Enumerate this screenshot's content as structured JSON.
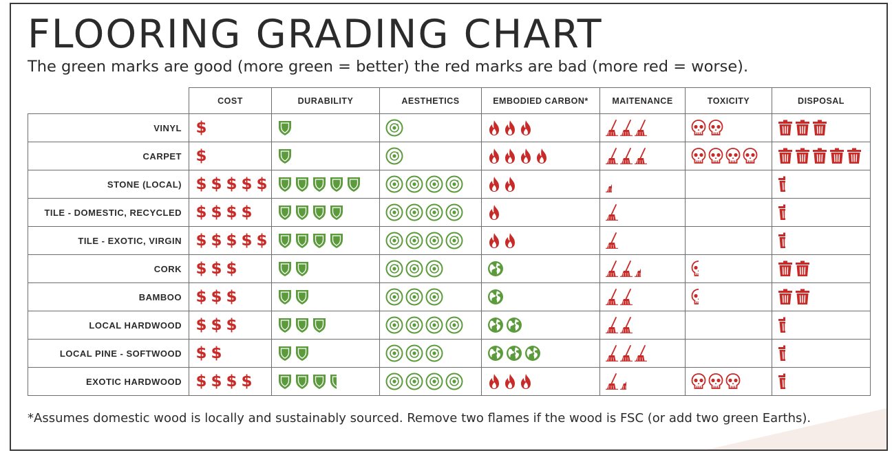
{
  "title": "FLOORING GRADING CHART",
  "subtitle": "The green marks are good (more green = better) the red marks are bad (more red = worse).",
  "columns": [
    "COST",
    "DURABILITY",
    "AESTHETICS",
    "EMBODIED CARBON*",
    "MAITENANCE",
    "TOXICITY",
    "DISPOSAL"
  ],
  "colors": {
    "good": "#5b9b3c",
    "bad": "#c72a27",
    "border": "#6d6d6d",
    "text": "#2b2b2b"
  },
  "icons": {
    "cost": "dollar-icon",
    "durability": "shield-icon",
    "aesthetics": "eye-icon",
    "carbon_bad": "flame-icon",
    "carbon_good": "earth-icon",
    "maintenance": "broom-icon",
    "toxicity": "skull-icon",
    "disposal": "trash-can-icon"
  },
  "rows": [
    {
      "name": "VINYL",
      "cost": 1,
      "durability": 1,
      "aesthetics": 1,
      "carbon": {
        "type": "flame",
        "count": 3
      },
      "maintenance": 3,
      "toxicity": 2,
      "disposal": 3
    },
    {
      "name": "CARPET",
      "cost": 1,
      "durability": 1,
      "aesthetics": 1,
      "carbon": {
        "type": "flame",
        "count": 4
      },
      "maintenance": 3,
      "toxicity": 4,
      "disposal": 5
    },
    {
      "name": "STONE (LOCAL)",
      "cost": 5,
      "durability": 5,
      "aesthetics": 4,
      "carbon": {
        "type": "flame",
        "count": 2
      },
      "maintenance": 0.5,
      "toxicity": 0,
      "disposal": 0.5
    },
    {
      "name": "TILE - DOMESTIC, RECYCLED",
      "cost": 4,
      "durability": 4,
      "aesthetics": 4,
      "carbon": {
        "type": "flame",
        "count": 1
      },
      "maintenance": 1,
      "toxicity": 0,
      "disposal": 0.5
    },
    {
      "name": "TILE - EXOTIC, VIRGIN",
      "cost": 5,
      "durability": 4,
      "aesthetics": 4,
      "carbon": {
        "type": "flame",
        "count": 2
      },
      "maintenance": 1,
      "toxicity": 0,
      "disposal": 0.5
    },
    {
      "name": "CORK",
      "cost": 3,
      "durability": 2,
      "aesthetics": 3,
      "carbon": {
        "type": "earth",
        "count": 1
      },
      "maintenance": 2.5,
      "toxicity": 0.5,
      "disposal": 2
    },
    {
      "name": "BAMBOO",
      "cost": 3,
      "durability": 2,
      "aesthetics": 3,
      "carbon": {
        "type": "earth",
        "count": 1
      },
      "maintenance": 2,
      "toxicity": 0.5,
      "disposal": 2
    },
    {
      "name": "LOCAL HARDWOOD",
      "cost": 3,
      "durability": 3,
      "aesthetics": 4,
      "carbon": {
        "type": "earth",
        "count": 2
      },
      "maintenance": 2,
      "toxicity": 0,
      "disposal": 0.5
    },
    {
      "name": "LOCAL PINE - SOFTWOOD",
      "cost": 2,
      "durability": 2,
      "aesthetics": 3,
      "carbon": {
        "type": "earth",
        "count": 3
      },
      "maintenance": 3,
      "toxicity": 0,
      "disposal": 0.5
    },
    {
      "name": "EXOTIC HARDWOOD",
      "cost": 4,
      "durability": 3.5,
      "aesthetics": 4,
      "carbon": {
        "type": "flame",
        "count": 3
      },
      "maintenance": 1.5,
      "toxicity": 3,
      "disposal": 0.5
    }
  ],
  "footnote": "*Assumes domestic wood is locally and sustainably sourced. Remove two flames if the wood is FSC (or add two green Earths)."
}
